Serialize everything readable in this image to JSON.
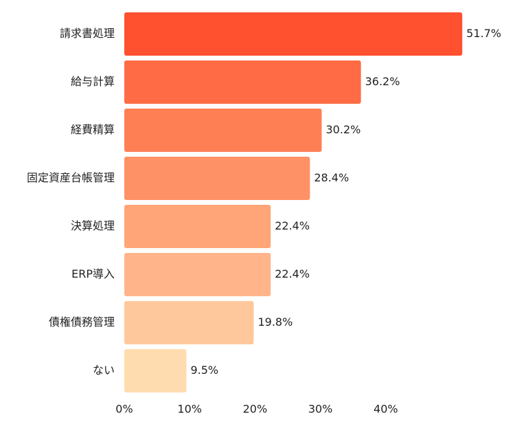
{
  "chart_data": {
    "type": "bar",
    "orientation": "horizontal",
    "categories": [
      "請求書処理",
      "給与計算",
      "経費精算",
      "固定資産台帳管理",
      "決算処理",
      "ERP導入",
      "債権債務管理",
      "ない"
    ],
    "values": [
      51.7,
      36.2,
      30.2,
      28.4,
      22.4,
      22.4,
      19.8,
      9.5
    ],
    "value_labels": [
      "51.7%",
      "36.2%",
      "30.2%",
      "28.4%",
      "22.4%",
      "22.4%",
      "19.8%",
      "9.5%"
    ],
    "colors": [
      "#ff5030",
      "#ff6b45",
      "#ff7f55",
      "#ff9166",
      "#ffa577",
      "#ffb589",
      "#ffc89c",
      "#ffdcb0"
    ],
    "x_ticks": [
      0,
      10,
      20,
      30,
      40
    ],
    "x_tick_labels": [
      "0%",
      "10%",
      "20%",
      "30%",
      "40%"
    ],
    "xlim": [
      0,
      50
    ],
    "grid": false,
    "legend": "none"
  }
}
